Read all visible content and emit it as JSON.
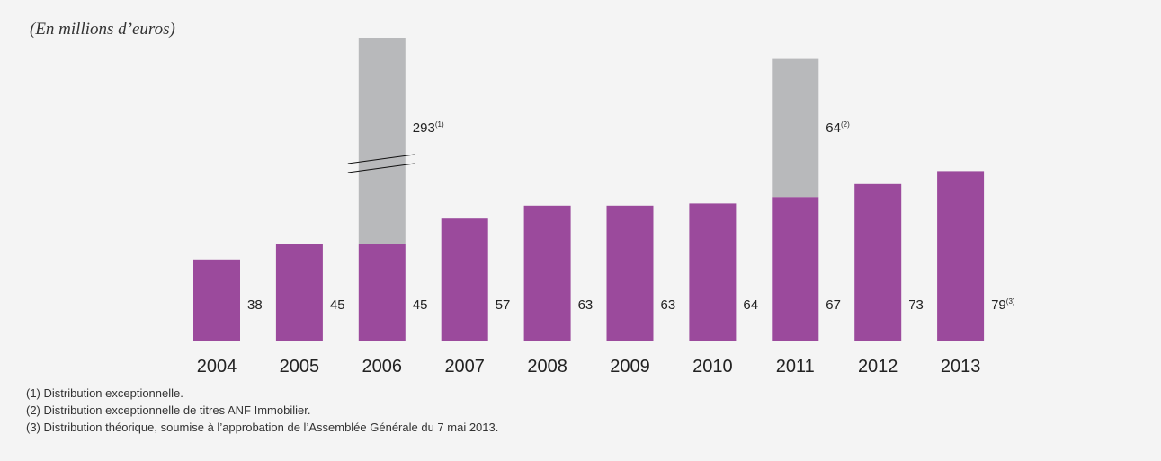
{
  "unit_label": "(En millions d’euros)",
  "footnotes": [
    "(1) Distribution exceptionnelle.",
    "(2) Distribution exceptionnelle de titres ANF Immobilier.",
    "(3) Distribution théorique, soumise à l’approbation de l’Assemblée Générale du 7 mai 2013."
  ],
  "colors": {
    "base": "#9b4a9c",
    "exceptional": "#b8b9bb",
    "text": "#222222"
  },
  "chart_data": {
    "type": "bar",
    "stacked": true,
    "broken_axis": true,
    "categories": [
      "2004",
      "2005",
      "2006",
      "2007",
      "2008",
      "2009",
      "2010",
      "2011",
      "2012",
      "2013"
    ],
    "series": [
      {
        "values": [
          38,
          45,
          45,
          57,
          63,
          63,
          64,
          67,
          73,
          79
        ]
      },
      {
        "values": [
          0,
          0,
          293,
          0,
          0,
          0,
          0,
          64,
          0,
          0
        ]
      }
    ],
    "value_labels": [
      {
        "text": "38",
        "sup": ""
      },
      {
        "text": "45",
        "sup": ""
      },
      {
        "text": "45",
        "sup": ""
      },
      {
        "text": "57",
        "sup": ""
      },
      {
        "text": "63",
        "sup": ""
      },
      {
        "text": "63",
        "sup": ""
      },
      {
        "text": "64",
        "sup": ""
      },
      {
        "text": "67",
        "sup": ""
      },
      {
        "text": "73",
        "sup": ""
      },
      {
        "text": "79",
        "sup": "(3)"
      }
    ],
    "exceptional_labels": [
      {
        "index": 2,
        "text": "293",
        "sup": "(1)"
      },
      {
        "index": 7,
        "text": "64",
        "sup": "(2)"
      }
    ],
    "xlabel": "",
    "ylabel": "",
    "grid": false,
    "legend": "none"
  }
}
